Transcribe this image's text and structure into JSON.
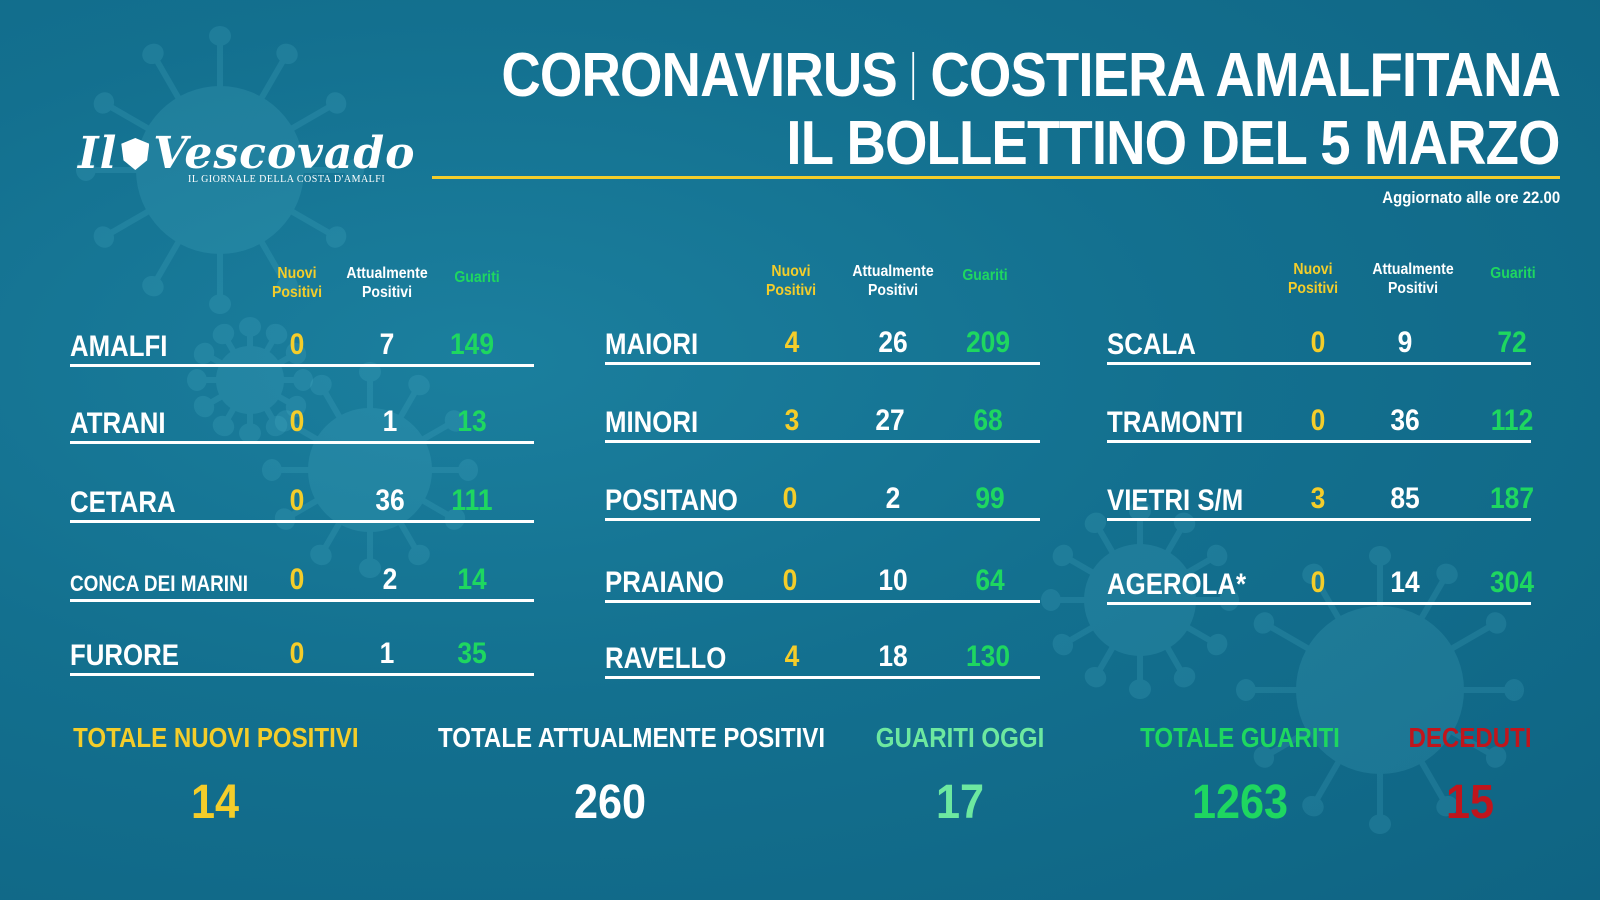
{
  "header": {
    "title_left": "CORONAVIRUS",
    "title_right": "COSTIERA AMALFITANA",
    "subtitle": "IL BOLLETTINO DEL 5 MARZO",
    "updated": "Aggiornato alle ore 22.00"
  },
  "logo": {
    "name_left": "Il",
    "name_right": "Vescovado",
    "tagline": "IL GIORNALE DELLA COSTA D'AMALFI"
  },
  "columns": {
    "nuovi": "Nuovi\nPositivi",
    "attualmente": "Attualmente\nPositivi",
    "guariti": "Guariti"
  },
  "groups": [
    {
      "rows": [
        {
          "town": "AMALFI",
          "nuovi": "0",
          "attualmente": "7",
          "guariti": "149"
        },
        {
          "town": "ATRANI",
          "nuovi": "0",
          "attualmente": "1",
          "guariti": "13"
        },
        {
          "town": "CETARA",
          "nuovi": "0",
          "attualmente": "36",
          "guariti": "111"
        },
        {
          "town": "CONCA DEI MARINI",
          "nuovi": "0",
          "attualmente": "2",
          "guariti": "14"
        },
        {
          "town": "FURORE",
          "nuovi": "0",
          "attualmente": "1",
          "guariti": "35"
        }
      ]
    },
    {
      "rows": [
        {
          "town": "MAIORI",
          "nuovi": "4",
          "attualmente": "26",
          "guariti": "209"
        },
        {
          "town": "MINORI",
          "nuovi": "3",
          "attualmente": "27",
          "guariti": "68"
        },
        {
          "town": "POSITANO",
          "nuovi": "0",
          "attualmente": "2",
          "guariti": "99"
        },
        {
          "town": "PRAIANO",
          "nuovi": "0",
          "attualmente": "10",
          "guariti": "64"
        },
        {
          "town": "RAVELLO",
          "nuovi": "4",
          "attualmente": "18",
          "guariti": "130"
        }
      ]
    },
    {
      "rows": [
        {
          "town": "SCALA",
          "nuovi": "0",
          "attualmente": "9",
          "guariti": "72"
        },
        {
          "town": "TRAMONTI",
          "nuovi": "0",
          "attualmente": "36",
          "guariti": "112"
        },
        {
          "town": "VIETRI S/M",
          "nuovi": "3",
          "attualmente": "85",
          "guariti": "187"
        },
        {
          "town": "AGEROLA*",
          "nuovi": "0",
          "attualmente": "14",
          "guariti": "304"
        }
      ]
    }
  ],
  "totals": {
    "nuovi_label": "TOTALE NUOVI POSITIVI",
    "nuovi_value": "14",
    "attualmente_label": "TOTALE ATTUALMENTE POSITIVI",
    "attualmente_value": "260",
    "guariti_oggi_label": "GUARITI OGGI",
    "guariti_oggi_value": "17",
    "guariti_label": "TOTALE GUARITI",
    "guariti_value": "1263",
    "deceduti_label": "DECEDUTI",
    "deceduti_value": "15"
  },
  "colors": {
    "background": "#13708f",
    "yellow": "#f4cd2a",
    "green": "#1ed760",
    "mint": "#6de8a0",
    "red": "#c0151c"
  }
}
